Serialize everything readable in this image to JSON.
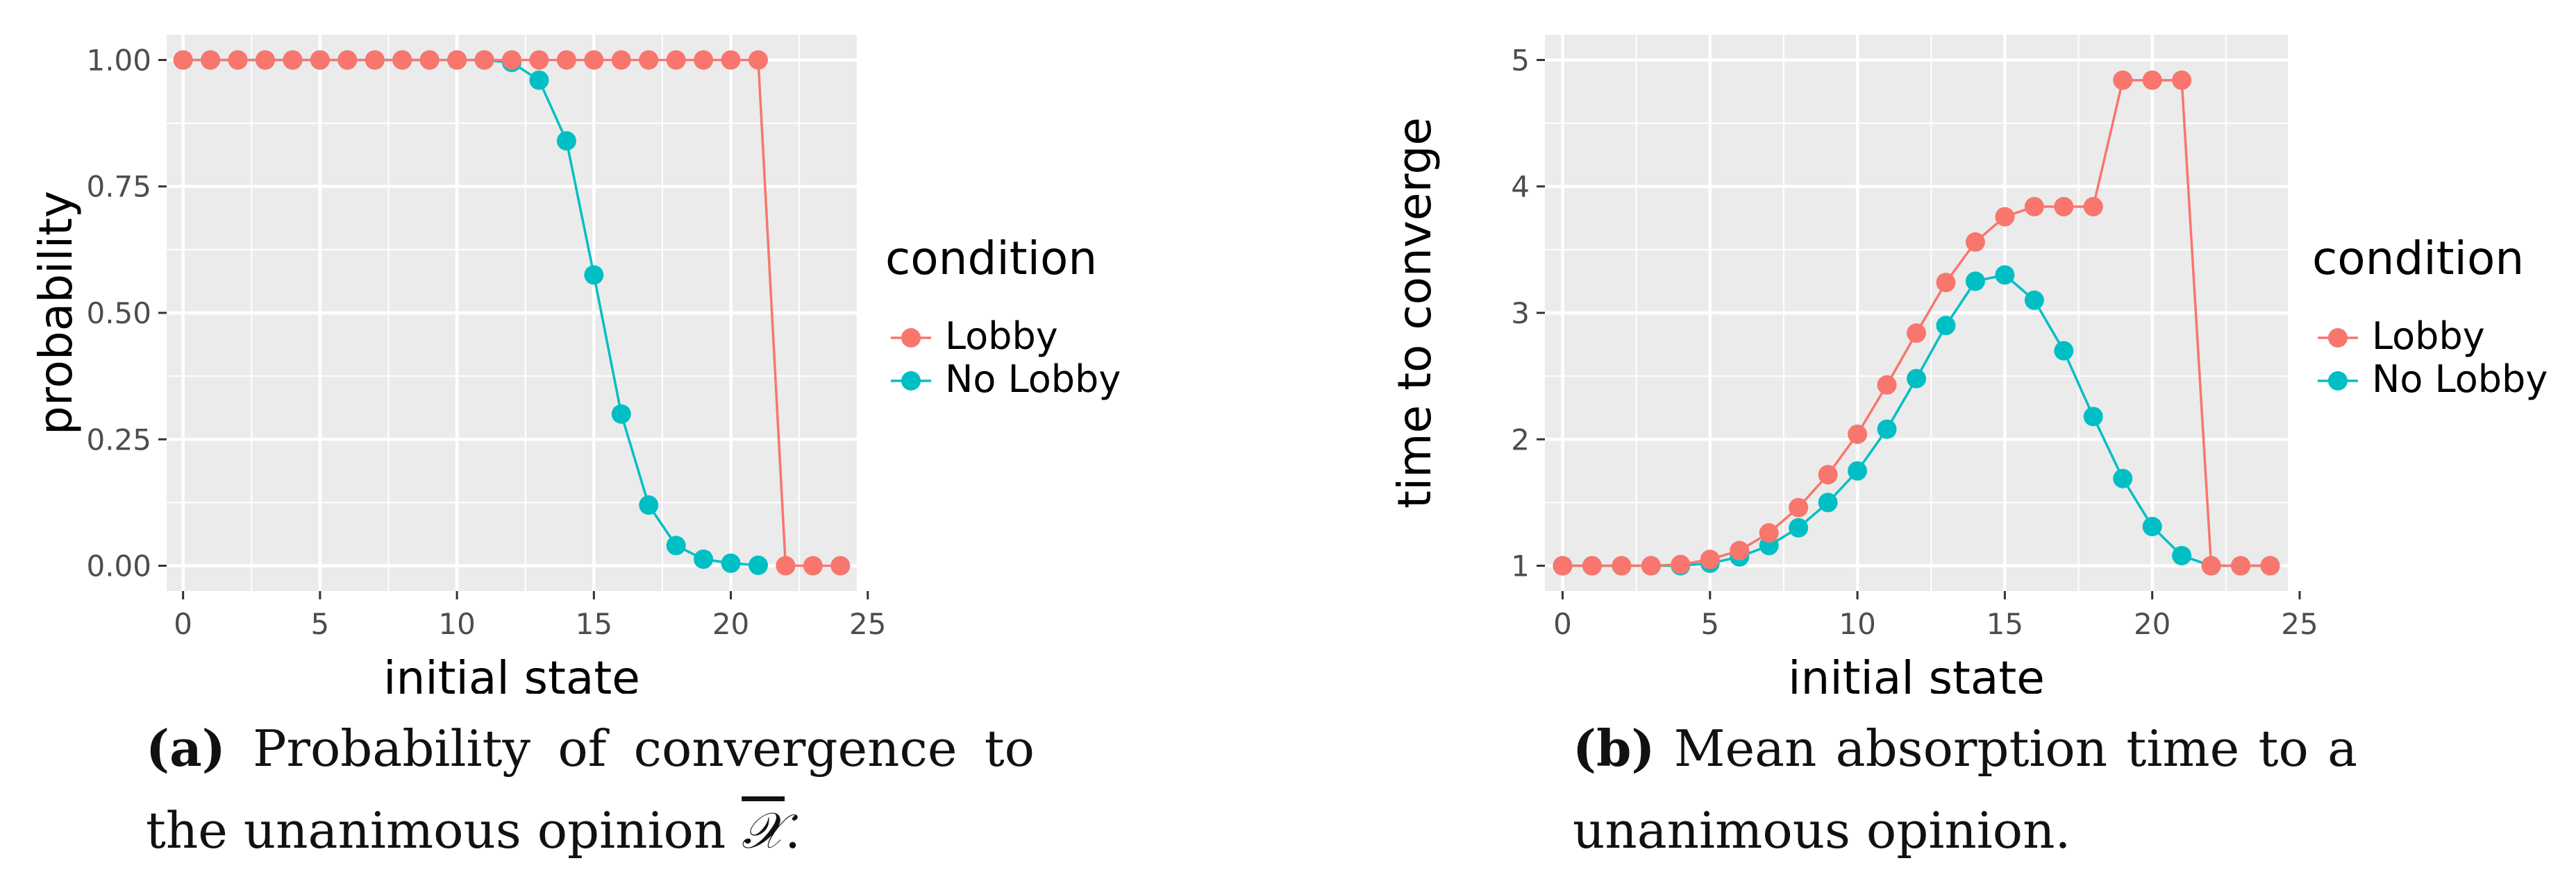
{
  "colors": {
    "lobby": "#f8766d",
    "no_lobby": "#00bfc4",
    "panel_bg": "#ebebeb",
    "grid": "#ffffff"
  },
  "chart_data": [
    {
      "type": "line",
      "xlabel": "initial state",
      "ylabel": "probability",
      "xlim": [
        -0.6,
        24.6
      ],
      "ylim": [
        -0.05,
        1.05
      ],
      "xticks": [
        0,
        5,
        10,
        15,
        20,
        25
      ],
      "xtick_labels": [
        "0",
        "5",
        "10",
        "15",
        "20",
        "25"
      ],
      "yticks": [
        0,
        0.25,
        0.5,
        0.75,
        1
      ],
      "ytick_labels": [
        "0.00",
        "0.25",
        "0.50",
        "0.75",
        "1.00"
      ],
      "grid": true,
      "legend": {
        "title": "condition",
        "placement": "right"
      },
      "x": [
        0,
        1,
        2,
        3,
        4,
        5,
        6,
        7,
        8,
        9,
        10,
        11,
        12,
        13,
        14,
        15,
        16,
        17,
        18,
        19,
        20,
        21,
        22,
        23,
        24
      ],
      "series": [
        {
          "name": "No Lobby",
          "color": "#00bfc4",
          "x": [
            0,
            1,
            2,
            3,
            4,
            5,
            6,
            7,
            8,
            9,
            10,
            11,
            12,
            13,
            14,
            15,
            16,
            17,
            18,
            19,
            20,
            21
          ],
          "values": [
            1,
            1,
            1,
            1,
            1,
            1,
            1,
            1,
            1,
            1,
            1,
            1,
            0.995,
            0.96,
            0.84,
            0.575,
            0.3,
            0.12,
            0.04,
            0.013,
            0.005,
            0.001
          ]
        },
        {
          "name": "Lobby",
          "color": "#f8766d",
          "x": [
            0,
            1,
            2,
            3,
            4,
            5,
            6,
            7,
            8,
            9,
            10,
            11,
            12,
            13,
            14,
            15,
            16,
            17,
            18,
            19,
            20,
            21,
            22,
            23,
            24
          ],
          "values": [
            1,
            1,
            1,
            1,
            1,
            1,
            1,
            1,
            1,
            1,
            1,
            1,
            1,
            1,
            1,
            1,
            1,
            1,
            1,
            1,
            1,
            1,
            0,
            0,
            0
          ]
        }
      ]
    },
    {
      "type": "line",
      "xlabel": "initial state",
      "ylabel": "time to converge",
      "xlim": [
        -0.6,
        24.6
      ],
      "ylim": [
        0.8,
        5.2
      ],
      "xticks": [
        0,
        5,
        10,
        15,
        20,
        25
      ],
      "xtick_labels": [
        "0",
        "5",
        "10",
        "15",
        "20",
        "25"
      ],
      "yticks": [
        1,
        2,
        3,
        4,
        5
      ],
      "ytick_labels": [
        "1",
        "2",
        "3",
        "4",
        "5"
      ],
      "grid": true,
      "legend": {
        "title": "condition",
        "placement": "right"
      },
      "x": [
        0,
        1,
        2,
        3,
        4,
        5,
        6,
        7,
        8,
        9,
        10,
        11,
        12,
        13,
        14,
        15,
        16,
        17,
        18,
        19,
        20,
        21,
        22,
        23,
        24
      ],
      "series": [
        {
          "name": "No Lobby",
          "color": "#00bfc4",
          "x": [
            0,
            1,
            2,
            3,
            4,
            5,
            6,
            7,
            8,
            9,
            10,
            11,
            12,
            13,
            14,
            15,
            16,
            17,
            18,
            19,
            20,
            21,
            22,
            23,
            24
          ],
          "values": [
            1,
            1,
            1,
            1,
            1,
            1.02,
            1.07,
            1.16,
            1.3,
            1.5,
            1.75,
            2.08,
            2.48,
            2.9,
            3.25,
            3.3,
            3.1,
            2.7,
            2.18,
            1.69,
            1.31,
            1.08,
            1,
            1,
            1
          ]
        },
        {
          "name": "Lobby",
          "color": "#f8766d",
          "x": [
            0,
            1,
            2,
            3,
            4,
            5,
            6,
            7,
            8,
            9,
            10,
            11,
            12,
            13,
            14,
            15,
            16,
            17,
            18,
            19,
            20,
            21,
            22,
            23,
            24
          ],
          "values": [
            1,
            1,
            1,
            1,
            1.01,
            1.05,
            1.12,
            1.26,
            1.46,
            1.72,
            2.04,
            2.43,
            2.84,
            3.24,
            3.56,
            3.76,
            3.84,
            3.84,
            3.84,
            4.84,
            4.84,
            4.84,
            1,
            1,
            1
          ]
        }
      ]
    }
  ],
  "captions": [
    {
      "label": "(a)",
      "text_before": "Probability of convergence to the unanimous opinion ",
      "math": "𝒳",
      "text_after": "."
    },
    {
      "label": "(b)",
      "text": "Mean absorption time to a unanimous opinion."
    }
  ]
}
